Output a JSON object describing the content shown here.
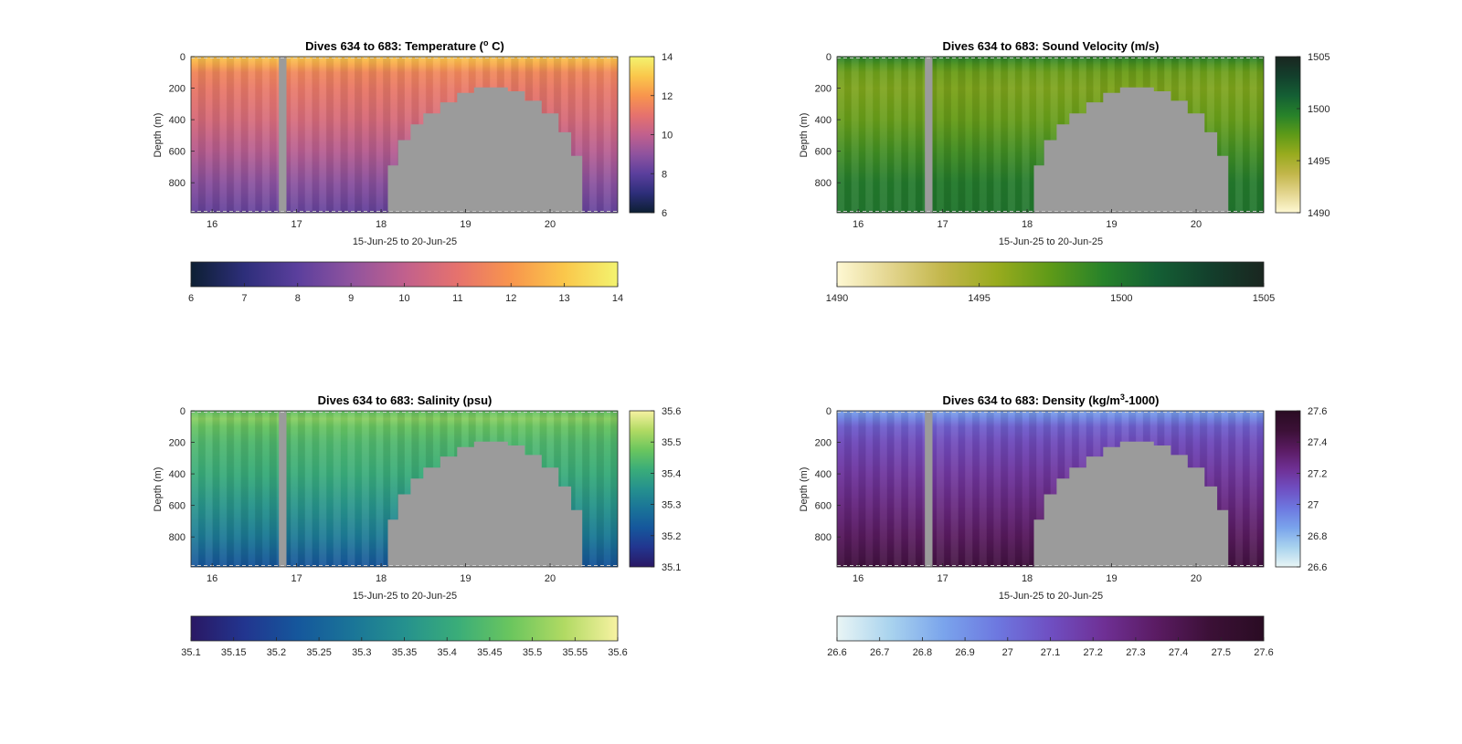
{
  "figure": {
    "panels": [
      {
        "key": "temperature",
        "title_main": "Dives 634 to 683: Temperature (",
        "title_sup": "o",
        "title_after": " C)",
        "ylabel": "Depth (m)",
        "xlabel": "15-Jun-25 to 20-Jun-25",
        "colormap": [
          "#0d1f33",
          "#2d2e7a",
          "#5b3f9d",
          "#8f539e",
          "#c1608d",
          "#e6726d",
          "#f8954d",
          "#fac74b",
          "#f3f36f"
        ],
        "cbar_side_ticks": [
          "6",
          "8",
          "10",
          "12",
          "14"
        ],
        "cbar_bottom_ticks": [
          "6",
          "7",
          "8",
          "9",
          "10",
          "11",
          "12",
          "13",
          "14"
        ]
      },
      {
        "key": "sound_velocity",
        "title_main": "Dives 634 to 683: Sound Velocity (m/s)",
        "title_sup": "",
        "title_after": "",
        "ylabel": "Depth (m)",
        "xlabel": "15-Jun-25 to 20-Jun-25",
        "colormap": [
          "#fef8d3",
          "#e3d58e",
          "#c2b64a",
          "#98ab1e",
          "#5e9a18",
          "#27822a",
          "#145f34",
          "#133f2c",
          "#1a2620"
        ],
        "cbar_side_ticks": [
          "1490",
          "1495",
          "1500",
          "1505"
        ],
        "cbar_bottom_ticks": [
          "1490",
          "1495",
          "1500",
          "1505"
        ]
      },
      {
        "key": "salinity",
        "title_main": "Dives 634 to 683: Salinity (psu)",
        "title_sup": "",
        "title_after": "",
        "ylabel": "Depth (m)",
        "xlabel": "15-Jun-25 to 20-Jun-25",
        "colormap": [
          "#2a1864",
          "#22358f",
          "#15579c",
          "#1a7498",
          "#25918e",
          "#3aad79",
          "#6bc65e",
          "#b1da63",
          "#f7f2a2"
        ],
        "cbar_side_ticks": [
          "35.1",
          "35.2",
          "35.3",
          "35.4",
          "35.5",
          "35.6"
        ],
        "cbar_bottom_ticks": [
          "35.1",
          "35.15",
          "35.2",
          "35.25",
          "35.3",
          "35.35",
          "35.4",
          "35.45",
          "35.5",
          "35.55",
          "35.6"
        ]
      },
      {
        "key": "density",
        "title_main": "Dives 634 to 683: Density (kg/m",
        "title_sup": "3",
        "title_after": "-1000)",
        "ylabel": "Depth (m)",
        "xlabel": "15-Jun-25 to 20-Jun-25",
        "colormap": [
          "#e9f5f5",
          "#a9d3ee",
          "#7aa4ec",
          "#6d78e0",
          "#6f4fc2",
          "#6f3095",
          "#5a1b62",
          "#3b1036",
          "#2a0c23"
        ],
        "cbar_side_ticks": [
          "26.6",
          "26.8",
          "27",
          "27.2",
          "27.4",
          "27.6"
        ],
        "cbar_bottom_ticks": [
          "26.6",
          "26.7",
          "26.8",
          "26.9",
          "27",
          "27.1",
          "27.2",
          "27.3",
          "27.4",
          "27.5",
          "27.6"
        ]
      }
    ]
  },
  "chart_data": [
    {
      "type": "heatmap",
      "title": "Dives 634 to 683: Temperature (o C)",
      "xlabel": "15-Jun-25 to 20-Jun-25",
      "ylabel": "Depth (m)",
      "x_ticks": [
        "16",
        "17",
        "18",
        "19",
        "20"
      ],
      "y_ticks": [
        "0",
        "200",
        "400",
        "600",
        "800"
      ],
      "xlim_days": [
        15.75,
        20.8
      ],
      "ylim_depth_m": [
        0,
        990
      ],
      "y_reversed": true,
      "colorbar_range": [
        6,
        14
      ],
      "profile_depth_m": [
        0,
        50,
        100,
        200,
        400,
        600,
        800,
        990
      ],
      "profile_values": [
        13.0,
        12.4,
        11.6,
        11.2,
        10.6,
        9.8,
        8.9,
        8.2
      ],
      "data_gap_days": [
        16.79,
        16.88
      ],
      "seabed_profile": {
        "day": [
          18.08,
          18.2,
          18.35,
          18.5,
          18.7,
          18.9,
          19.1,
          19.3,
          19.5,
          19.7,
          19.9,
          20.1,
          20.25,
          20.38
        ],
        "depth_m": [
          690,
          530,
          430,
          360,
          290,
          230,
          195,
          195,
          220,
          280,
          360,
          480,
          630,
          990
        ]
      }
    },
    {
      "type": "heatmap",
      "title": "Dives 634 to 683: Sound Velocity (m/s)",
      "xlabel": "15-Jun-25 to 20-Jun-25",
      "ylabel": "Depth (m)",
      "x_ticks": [
        "16",
        "17",
        "18",
        "19",
        "20"
      ],
      "y_ticks": [
        "0",
        "200",
        "400",
        "600",
        "800"
      ],
      "xlim_days": [
        15.75,
        20.8
      ],
      "ylim_depth_m": [
        0,
        990
      ],
      "y_reversed": true,
      "colorbar_range": [
        1490,
        1505
      ],
      "profile_depth_m": [
        0,
        50,
        100,
        200,
        400,
        600,
        800,
        990
      ],
      "profile_values": [
        1499.5,
        1498.0,
        1497.0,
        1496.5,
        1497.2,
        1498.5,
        1499.8,
        1500.0
      ],
      "data_gap_days": [
        16.79,
        16.88
      ],
      "seabed_profile": {
        "day": [
          18.08,
          18.2,
          18.35,
          18.5,
          18.7,
          18.9,
          19.1,
          19.3,
          19.5,
          19.7,
          19.9,
          20.1,
          20.25,
          20.38
        ],
        "depth_m": [
          690,
          530,
          430,
          360,
          290,
          230,
          195,
          195,
          220,
          280,
          360,
          480,
          630,
          990
        ]
      }
    },
    {
      "type": "heatmap",
      "title": "Dives 634 to 683: Salinity (psu)",
      "xlabel": "15-Jun-25 to 20-Jun-25",
      "ylabel": "Depth (m)",
      "x_ticks": [
        "16",
        "17",
        "18",
        "19",
        "20"
      ],
      "y_ticks": [
        "0",
        "200",
        "400",
        "600",
        "800"
      ],
      "xlim_days": [
        15.75,
        20.8
      ],
      "ylim_depth_m": [
        0,
        990
      ],
      "y_reversed": true,
      "colorbar_range": [
        35.1,
        35.6
      ],
      "profile_depth_m": [
        0,
        50,
        100,
        200,
        400,
        600,
        800,
        990
      ],
      "profile_values": [
        35.46,
        35.5,
        35.47,
        35.44,
        35.41,
        35.36,
        35.3,
        35.22
      ],
      "data_gap_days": [
        16.79,
        16.88
      ],
      "seabed_profile": {
        "day": [
          18.08,
          18.2,
          18.35,
          18.5,
          18.7,
          18.9,
          19.1,
          19.3,
          19.5,
          19.7,
          19.9,
          20.1,
          20.25,
          20.38
        ],
        "depth_m": [
          690,
          530,
          430,
          360,
          290,
          230,
          195,
          195,
          220,
          280,
          360,
          480,
          630,
          990
        ]
      }
    },
    {
      "type": "heatmap",
      "title": "Dives 634 to 683: Density (kg/m3-1000)",
      "xlabel": "15-Jun-25 to 20-Jun-25",
      "ylabel": "Depth (m)",
      "x_ticks": [
        "16",
        "17",
        "18",
        "19",
        "20"
      ],
      "y_ticks": [
        "0",
        "200",
        "400",
        "600",
        "800"
      ],
      "xlim_days": [
        15.75,
        20.8
      ],
      "ylim_depth_m": [
        0,
        990
      ],
      "y_reversed": true,
      "colorbar_range": [
        26.6,
        27.6
      ],
      "profile_depth_m": [
        0,
        50,
        100,
        200,
        400,
        600,
        800,
        990
      ],
      "profile_values": [
        26.85,
        26.95,
        27.05,
        27.12,
        27.2,
        27.28,
        27.36,
        27.45
      ],
      "data_gap_days": [
        16.79,
        16.88
      ],
      "seabed_profile": {
        "day": [
          18.08,
          18.2,
          18.35,
          18.5,
          18.7,
          18.9,
          19.1,
          19.3,
          19.5,
          19.7,
          19.9,
          20.1,
          20.25,
          20.38
        ],
        "depth_m": [
          690,
          530,
          430,
          360,
          290,
          230,
          195,
          195,
          220,
          280,
          360,
          480,
          630,
          990
        ]
      }
    }
  ]
}
